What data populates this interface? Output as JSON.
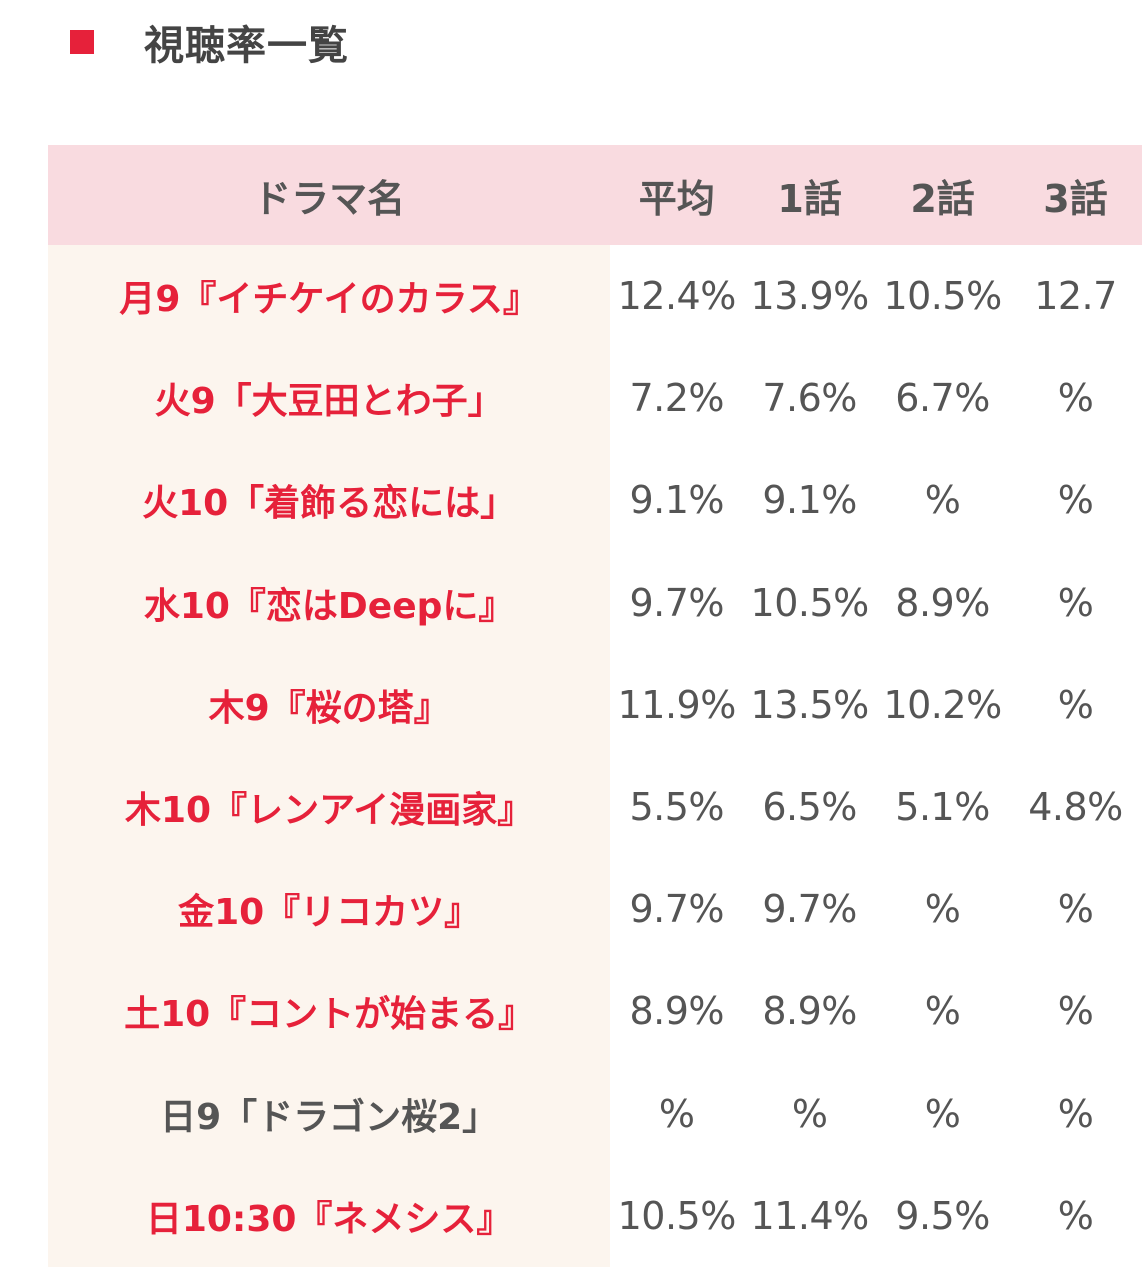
{
  "heading": {
    "marker_color": "#e6213a",
    "title": "視聴率一覧"
  },
  "table": {
    "headers": [
      "ドラマ名",
      "平均",
      "1話",
      "2話",
      "3話"
    ],
    "header_bg": "#f9dbe0",
    "name_col_bg": "#fcf5ee",
    "accent_color": "#e6213a",
    "rows": [
      {
        "name": "月9『イチケイのカラス』",
        "avg": "12.4%",
        "ep1": "13.9%",
        "ep2": "10.5%",
        "ep3": "12.7"
      },
      {
        "name": "火9「大豆田とわ子」",
        "avg": "7.2%",
        "ep1": "7.6%",
        "ep2": "6.7%",
        "ep3": "%"
      },
      {
        "name": "火10「着飾る恋には」",
        "avg": "9.1%",
        "ep1": "9.1%",
        "ep2": "%",
        "ep3": "%"
      },
      {
        "name": "水10『恋はDeepに』",
        "avg": "9.7%",
        "ep1": "10.5%",
        "ep2": "8.9%",
        "ep3": "%"
      },
      {
        "name": "木9『桜の塔』",
        "avg": "11.9%",
        "ep1": "13.5%",
        "ep2": "10.2%",
        "ep3": "%"
      },
      {
        "name": "木10『レンアイ漫画家』",
        "avg": "5.5%",
        "ep1": "6.5%",
        "ep2": "5.1%",
        "ep3": "4.8%"
      },
      {
        "name": "金10『リコカツ』",
        "avg": "9.7%",
        "ep1": "9.7%",
        "ep2": "%",
        "ep3": "%"
      },
      {
        "name": "土10『コントが始まる』",
        "avg": "8.9%",
        "ep1": "8.9%",
        "ep2": "%",
        "ep3": "%"
      },
      {
        "name": "日9「ドラゴン桜2」",
        "avg": "%",
        "ep1": "%",
        "ep2": "%",
        "ep3": "%"
      },
      {
        "name": "日10:30『ネメシス』",
        "avg": "10.5%",
        "ep1": "11.4%",
        "ep2": "9.5%",
        "ep3": "%"
      }
    ]
  }
}
